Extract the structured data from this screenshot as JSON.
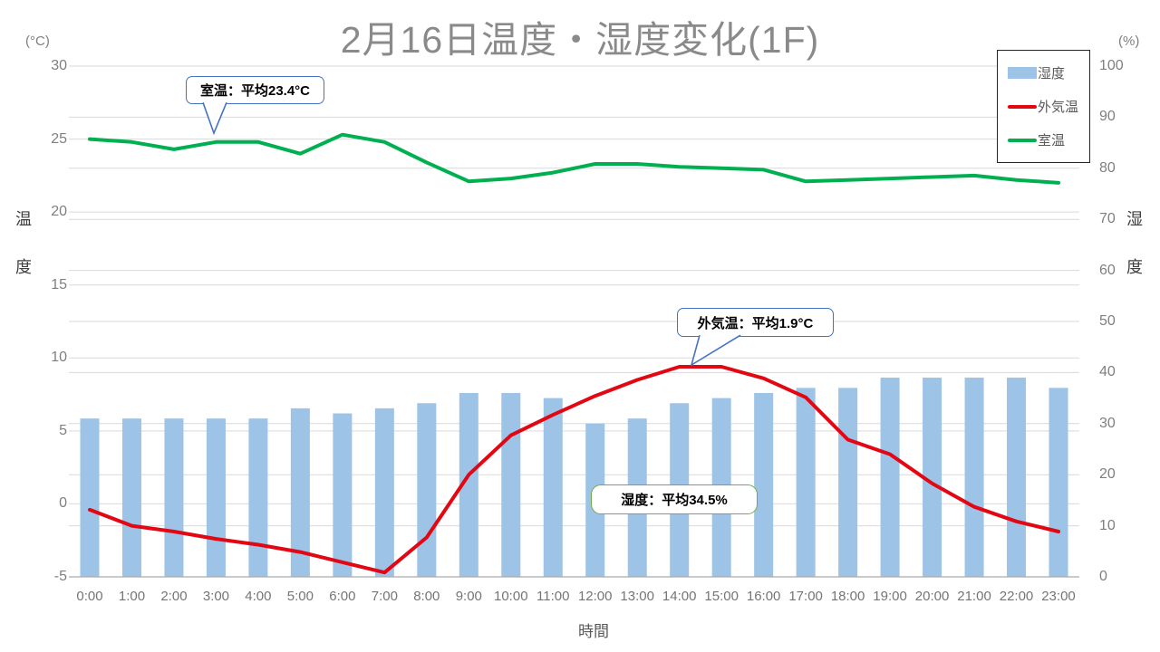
{
  "title": "2月16日温度・湿度変化(1F)",
  "axes": {
    "left": {
      "unit": "(°C)",
      "label_chars": [
        "温",
        "度"
      ]
    },
    "right": {
      "unit": "(%)",
      "label_chars": [
        "湿",
        "度"
      ]
    },
    "x": {
      "label": "時間"
    }
  },
  "legend": [
    {
      "label": "湿度",
      "type": "bar",
      "color": "#9DC3E6"
    },
    {
      "label": "外気温",
      "type": "line",
      "color": "#E30613"
    },
    {
      "label": "室温",
      "type": "line",
      "color": "#00B050"
    }
  ],
  "annotations": [
    {
      "id": "room",
      "text": "室温：平均23.4°C",
      "border_color": "#4472C4"
    },
    {
      "id": "out",
      "text": "外気温：平均1.9°C",
      "border_color": "#4472C4"
    },
    {
      "id": "hum",
      "text": "湿度：平均34.5%",
      "border_color": "#70AD47"
    }
  ],
  "chart_data": {
    "type": "combo",
    "title": "2月16日温度・湿度変化(1F)",
    "xlabel": "時間",
    "categories": [
      "0:00",
      "1:00",
      "2:00",
      "3:00",
      "4:00",
      "5:00",
      "6:00",
      "7:00",
      "8:00",
      "9:00",
      "10:00",
      "11:00",
      "12:00",
      "13:00",
      "14:00",
      "15:00",
      "16:00",
      "17:00",
      "18:00",
      "19:00",
      "20:00",
      "21:00",
      "22:00",
      "23:00"
    ],
    "series": [
      {
        "name": "湿度",
        "type": "bar",
        "axis": "right",
        "unit": "%",
        "color": "#9DC3E6",
        "values": [
          31,
          31,
          31,
          31,
          31,
          33,
          32,
          33,
          34,
          36,
          36,
          35,
          30,
          31,
          34,
          35,
          36,
          37,
          37,
          39,
          39,
          39,
          39,
          37
        ],
        "average": 34.5
      },
      {
        "name": "外気温",
        "type": "line",
        "axis": "left",
        "unit": "°C",
        "color": "#E30613",
        "values": [
          -0.4,
          -1.5,
          -1.9,
          -2.4,
          -2.8,
          -3.3,
          -4.0,
          -4.7,
          -2.3,
          2.0,
          4.7,
          6.1,
          7.4,
          8.5,
          9.4,
          9.4,
          8.6,
          7.3,
          4.4,
          3.4,
          1.4,
          -0.2,
          -1.2,
          -1.9
        ],
        "average": 1.9
      },
      {
        "name": "室温",
        "type": "line",
        "axis": "left",
        "unit": "°C",
        "color": "#00B050",
        "values": [
          25.0,
          24.8,
          24.3,
          24.8,
          24.8,
          24.0,
          25.3,
          24.8,
          23.4,
          22.1,
          22.3,
          22.7,
          23.3,
          23.3,
          23.1,
          23.0,
          22.9,
          22.1,
          22.2,
          22.3,
          22.4,
          22.5,
          22.2,
          22.0
        ],
        "average": 23.4
      }
    ],
    "left_axis": {
      "label": "温度",
      "unit": "°C",
      "range": [
        -5,
        30
      ],
      "ticks": [
        30,
        25,
        20,
        15,
        10,
        5,
        0,
        -5
      ]
    },
    "right_axis": {
      "label": "湿度",
      "unit": "%",
      "range": [
        0,
        100
      ],
      "ticks": [
        100,
        90,
        80,
        70,
        60,
        50,
        40,
        30,
        20,
        10,
        0
      ]
    },
    "gridlines": "horizontal-both-axes",
    "legend_position": "top-right"
  }
}
